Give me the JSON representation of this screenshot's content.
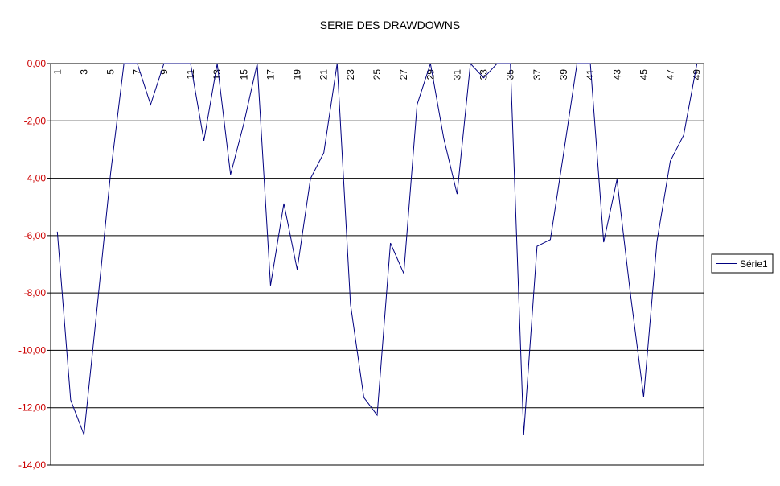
{
  "chart_data": {
    "type": "line",
    "title": "SERIE DES DRAWDOWNS",
    "categories": [
      "1",
      null,
      "3",
      null,
      "5",
      null,
      "7",
      null,
      "9",
      null,
      "11",
      null,
      "13",
      null,
      "15",
      null,
      "17",
      null,
      "19",
      null,
      "21",
      null,
      "23",
      null,
      "25",
      null,
      "27",
      null,
      "29",
      null,
      "31",
      null,
      "33",
      null,
      "35",
      null,
      "37",
      null,
      "39",
      null,
      "41",
      null,
      "43",
      null,
      "45",
      null,
      "47",
      null,
      "49"
    ],
    "series": [
      {
        "name": "Série1",
        "color": "#000080",
        "values": [
          -5.86,
          -11.73,
          -12.94,
          -8.45,
          -3.82,
          0,
          0,
          -1.43,
          0,
          0,
          0,
          -2.69,
          0,
          -3.87,
          -2.08,
          0,
          -7.74,
          -4.88,
          -7.18,
          -4.01,
          -3.11,
          0,
          -8.39,
          -11.64,
          -12.26,
          -6.26,
          -7.32,
          -1.43,
          0,
          -2.61,
          -4.55,
          0,
          -0.5,
          0,
          0,
          -12.94,
          -6.37,
          -6.14,
          -3.11,
          0,
          0,
          -6.23,
          -4.04,
          -8.0,
          -11.62,
          -6.2,
          -3.4,
          -2.5,
          0
        ]
      }
    ],
    "ylim": [
      -14,
      0
    ],
    "yticks": [
      {
        "value": -14,
        "label": "-14,00"
      },
      {
        "value": -12,
        "label": "-12,00"
      },
      {
        "value": -10,
        "label": "-10,00"
      },
      {
        "value": -8,
        "label": "-8,00"
      },
      {
        "value": -6,
        "label": "-6,00"
      },
      {
        "value": -4,
        "label": "-4,00"
      },
      {
        "value": -2,
        "label": "-2,00"
      },
      {
        "value": 0,
        "label": "0,00"
      }
    ],
    "grid": true,
    "legend": "right"
  }
}
